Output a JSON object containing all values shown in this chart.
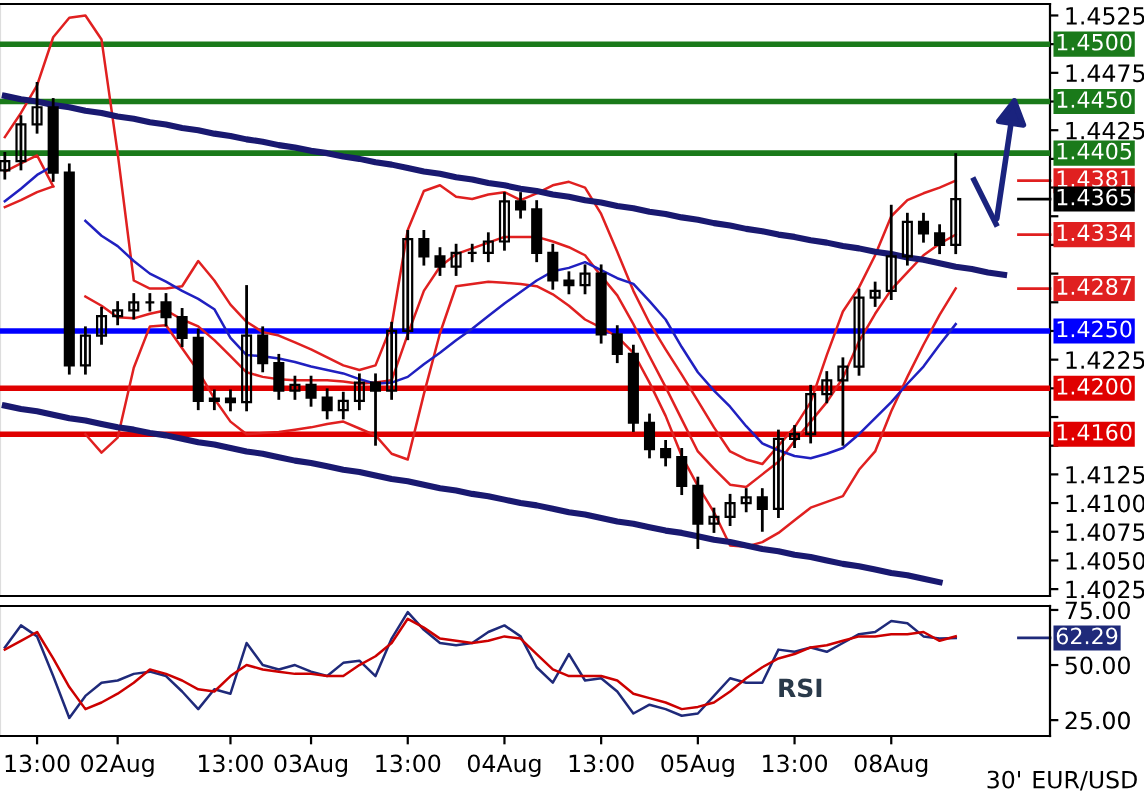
{
  "chart_data": [
    {
      "type": "candlestick",
      "color": "#000000",
      "tick_labels": "y",
      "categories": [
        null,
        null,
        null,
        null,
        null,
        null,
        null,
        null,
        null,
        null,
        null,
        null,
        null,
        null,
        null,
        null,
        null,
        null,
        null,
        null,
        null,
        null,
        null,
        null,
        null,
        null,
        null,
        null,
        null,
        null,
        null,
        null,
        null,
        null,
        null,
        null,
        null,
        null,
        null,
        null,
        null,
        null,
        null,
        null,
        null,
        null,
        null,
        null,
        null,
        null,
        null,
        null,
        null,
        null,
        null,
        null,
        null,
        null,
        null,
        null,
        null,
        null,
        null,
        null
      ],
      "ohlc": [
        [
          1.439,
          1.4406,
          1.4382,
          1.4398
        ],
        [
          1.4398,
          1.4438,
          1.439,
          1.443
        ],
        [
          1.443,
          1.4467,
          1.4422,
          1.4445
        ],
        [
          1.4445,
          1.4453,
          1.438,
          1.4388
        ],
        [
          1.4388,
          1.4396,
          1.4212,
          1.422
        ],
        [
          1.422,
          1.4254,
          1.4212,
          1.4246
        ],
        [
          1.4246,
          1.4271,
          1.4238,
          1.4263
        ],
        [
          1.4263,
          1.4276,
          1.4255,
          1.4268
        ],
        [
          1.4268,
          1.4283,
          1.426,
          1.4275
        ],
        [
          1.4275,
          1.4283,
          1.4267,
          1.4275
        ],
        [
          1.4275,
          1.4283,
          1.4254,
          1.4262
        ],
        [
          1.4262,
          1.427,
          1.4236,
          1.4244
        ],
        [
          1.4244,
          1.4252,
          1.4181,
          1.4189
        ],
        [
          1.4189,
          1.4199,
          1.4181,
          1.4191
        ],
        [
          1.4191,
          1.4199,
          1.418,
          1.4188
        ],
        [
          1.4188,
          1.429,
          1.418,
          1.4246
        ],
        [
          1.4246,
          1.4254,
          1.4214,
          1.4222
        ],
        [
          1.4222,
          1.423,
          1.419,
          1.4198
        ],
        [
          1.4198,
          1.4211,
          1.419,
          1.4203
        ],
        [
          1.4203,
          1.4211,
          1.4184,
          1.4192
        ],
        [
          1.4192,
          1.42,
          1.4173,
          1.4181
        ],
        [
          1.4181,
          1.4197,
          1.4173,
          1.4189
        ],
        [
          1.4189,
          1.4213,
          1.4181,
          1.4205
        ],
        [
          1.4205,
          1.4213,
          1.415,
          1.4198
        ],
        [
          1.4198,
          1.4258,
          1.419,
          1.425
        ],
        [
          1.425,
          1.4338,
          1.4242,
          1.433
        ],
        [
          1.433,
          1.4338,
          1.4307,
          1.4315
        ],
        [
          1.4315,
          1.4323,
          1.4298,
          1.4306
        ],
        [
          1.4306,
          1.4326,
          1.4298,
          1.4318
        ],
        [
          1.4318,
          1.4326,
          1.431,
          1.4318
        ],
        [
          1.4318,
          1.4336,
          1.431,
          1.4328
        ],
        [
          1.4328,
          1.4371,
          1.432,
          1.4363
        ],
        [
          1.4363,
          1.4371,
          1.4348,
          1.4356
        ],
        [
          1.4356,
          1.4364,
          1.431,
          1.4318
        ],
        [
          1.4318,
          1.4326,
          1.4286,
          1.4294
        ],
        [
          1.4294,
          1.4302,
          1.4282,
          1.429
        ],
        [
          1.429,
          1.4308,
          1.4282,
          1.43
        ],
        [
          1.43,
          1.4308,
          1.4239,
          1.4247
        ],
        [
          1.4247,
          1.4255,
          1.4222,
          1.423
        ],
        [
          1.423,
          1.4238,
          1.4162,
          1.417
        ],
        [
          1.417,
          1.4178,
          1.4139,
          1.4147
        ],
        [
          1.4147,
          1.4155,
          1.4132,
          1.414
        ],
        [
          1.414,
          1.4148,
          1.4107,
          1.4115
        ],
        [
          1.4115,
          1.4123,
          1.406,
          1.4082
        ],
        [
          1.4082,
          1.4096,
          1.4074,
          1.4088
        ],
        [
          1.4088,
          1.4108,
          1.408,
          1.41
        ],
        [
          1.41,
          1.4113,
          1.4092,
          1.4105
        ],
        [
          1.4105,
          1.4113,
          1.4075,
          1.4095
        ],
        [
          1.4095,
          1.4164,
          1.4087,
          1.4156
        ],
        [
          1.4156,
          1.4168,
          1.4148,
          1.416
        ],
        [
          1.416,
          1.4203,
          1.4152,
          1.4195
        ],
        [
          1.4195,
          1.4215,
          1.4187,
          1.4207
        ],
        [
          1.4207,
          1.4227,
          1.415,
          1.4219
        ],
        [
          1.4219,
          1.4287,
          1.4211,
          1.4279
        ],
        [
          1.4279,
          1.4293,
          1.4271,
          1.4285
        ],
        [
          1.4285,
          1.436,
          1.4277,
          1.4315
        ],
        [
          1.4315,
          1.4353,
          1.4307,
          1.4345
        ],
        [
          1.4345,
          1.4353,
          1.4327,
          1.4335
        ],
        [
          1.4335,
          1.4343,
          1.4317,
          1.4325
        ],
        [
          1.4325,
          1.4405,
          1.4317,
          1.4365
        ],
        null,
        null,
        null,
        null
      ],
      "series": [
        {
          "type": "line",
          "color": "#e02020",
          "values": [
            1.4419,
            1.444,
            1.4464,
            1.4506,
            1.4523,
            1.4525,
            1.4504,
            1.4405,
            1.4294,
            1.4287,
            1.4287,
            1.4289,
            1.4311,
            1.4294,
            1.4273,
            1.4258,
            1.4249,
            1.4246,
            1.424,
            1.4234,
            1.4227,
            1.422,
            1.4216,
            1.422,
            1.4255,
            1.4338,
            1.4372,
            1.4377,
            1.4367,
            1.4365,
            1.4369,
            1.4371,
            1.4364,
            1.437,
            1.4377,
            1.438,
            1.4375,
            1.4352,
            1.4319,
            1.4285,
            1.4257,
            1.4234,
            1.4212,
            1.4189,
            1.4166,
            1.4145,
            1.4138,
            1.4134,
            1.415,
            1.4166,
            1.4188,
            1.4229,
            1.4267,
            1.4288,
            1.4316,
            1.435,
            1.4364,
            1.437,
            1.4375,
            1.4381,
            null,
            null,
            null,
            null
          ]
        },
        {
          "type": "line",
          "color": "#e02020",
          "values": [
            1.4389,
            1.4396,
            1.4403,
            1.4376,
            null,
            1.428,
            1.4272,
            1.4262,
            1.4261,
            1.4265,
            1.4268,
            1.426,
            1.4254,
            1.4242,
            1.4228,
            1.4214,
            1.421,
            1.4208,
            1.4207,
            1.4207,
            1.4207,
            1.4206,
            1.4204,
            1.4205,
            1.4207,
            1.4247,
            1.4285,
            1.4306,
            1.4317,
            1.4322,
            1.4327,
            1.4332,
            1.4332,
            1.4332,
            1.4328,
            1.4323,
            1.4316,
            1.4298,
            1.4281,
            1.4256,
            1.4228,
            1.4201,
            1.4173,
            1.4145,
            1.413,
            1.4116,
            1.4114,
            1.4125,
            1.4136,
            1.4154,
            1.4171,
            1.4188,
            1.4209,
            1.4241,
            1.4265,
            1.4286,
            1.4301,
            1.4316,
            1.4326,
            1.4334,
            null,
            null,
            null,
            null
          ]
        },
        {
          "type": "line",
          "color": "#e02020",
          "values": [
            1.4358,
            1.4364,
            1.4371,
            1.4376,
            null,
            1.416,
            1.4144,
            1.4157,
            1.4218,
            1.4254,
            1.4255,
            1.4235,
            1.4215,
            1.4191,
            1.4171,
            1.416,
            1.4161,
            1.4162,
            1.4164,
            1.4166,
            1.4169,
            1.4171,
            1.4165,
            1.4159,
            1.4143,
            1.4138,
            1.4195,
            1.4248,
            1.4289,
            1.4291,
            1.4293,
            1.4292,
            1.4291,
            1.4289,
            1.4282,
            1.4272,
            1.426,
            1.4253,
            1.4245,
            1.4231,
            1.4205,
            1.4176,
            1.4141,
            1.4115,
            1.4092,
            1.4063,
            1.4062,
            1.4066,
            1.4074,
            1.4085,
            1.4096,
            1.4101,
            1.4106,
            1.4129,
            1.4145,
            1.418,
            1.421,
            1.4238,
            1.4264,
            1.4287,
            null,
            null,
            null,
            null
          ]
        },
        {
          "type": "line",
          "color": "#2020c0",
          "values": [
            1.4363,
            1.4374,
            1.4386,
            1.4394,
            null,
            1.4346,
            1.4333,
            1.4324,
            1.4311,
            1.43,
            1.4293,
            1.4285,
            1.4278,
            1.4269,
            1.4244,
            1.4229,
            1.4228,
            1.4226,
            1.4223,
            1.4219,
            1.4216,
            1.4213,
            1.4208,
            1.4204,
            1.4205,
            1.421,
            1.4221,
            1.4231,
            1.4242,
            1.4252,
            1.4263,
            1.4274,
            1.4284,
            1.4294,
            1.4302,
            1.4305,
            1.431,
            1.4303,
            1.4296,
            1.4291,
            1.4276,
            1.426,
            1.4236,
            1.4214,
            1.4198,
            1.4184,
            1.4167,
            1.4152,
            1.4146,
            1.4141,
            1.4139,
            1.4143,
            1.4148,
            1.416,
            1.4174,
            1.4188,
            1.4204,
            1.4219,
            1.4238,
            1.4256,
            null,
            null,
            null,
            null
          ]
        },
        {
          "type": "line",
          "color": "#191970",
          "values": [
            1.4455,
            1.4452,
            1.445,
            1.4447,
            1.4445,
            1.4442,
            1.444,
            1.4437,
            1.4435,
            1.4432,
            1.443,
            1.4427,
            1.4425,
            1.4422,
            1.442,
            1.4417,
            1.4415,
            1.4412,
            1.441,
            1.4407,
            1.4405,
            1.4402,
            1.44,
            1.4397,
            1.4395,
            1.4392,
            1.4389,
            1.4387,
            1.4384,
            1.4382,
            1.4379,
            1.4377,
            1.4374,
            1.4372,
            1.4369,
            1.4367,
            1.4364,
            1.4362,
            1.4359,
            1.4357,
            1.4354,
            1.4352,
            1.4349,
            1.4347,
            1.4344,
            1.4342,
            1.4339,
            1.4337,
            1.4334,
            1.4332,
            1.4329,
            1.4327,
            1.4324,
            1.4322,
            1.4319,
            1.4317,
            1.4314,
            1.4312,
            1.4309,
            1.4306,
            1.4304,
            1.4301,
            1.4299,
            null
          ]
        },
        {
          "type": "line",
          "color": "#191970",
          "values": [
            1.4185,
            1.4182,
            1.418,
            1.4177,
            1.4174,
            1.4172,
            1.4169,
            1.4166,
            1.4164,
            1.4161,
            1.4159,
            1.4156,
            1.4153,
            1.4151,
            1.4148,
            1.4145,
            1.4143,
            1.414,
            1.4137,
            1.4135,
            1.4132,
            1.4129,
            1.4127,
            1.4124,
            1.4121,
            1.4119,
            1.4116,
            1.4113,
            1.4111,
            1.4108,
            1.4106,
            1.4103,
            1.41,
            1.4098,
            1.4095,
            1.4092,
            1.409,
            1.4087,
            1.4084,
            1.4082,
            1.4079,
            1.4076,
            1.4074,
            1.4071,
            1.4068,
            1.4066,
            1.4063,
            1.406,
            1.4058,
            1.4055,
            1.4053,
            1.405,
            1.4047,
            1.4045,
            1.4042,
            1.4039,
            1.4037,
            1.4034,
            1.4031,
            null,
            null,
            null,
            null,
            null
          ]
        }
      ],
      "ylim": [
        1.4019,
        1.4535
      ],
      "yticks": [
        1.4025,
        {
          "value": 1.405,
          "label": "1.4050"
        },
        1.4075,
        {
          "value": 1.41,
          "label": "1.4100"
        },
        1.4125,
        {
          "value": 1.415,
          "label": null
        },
        {
          "value": 1.4175,
          "label": null
        },
        {
          "value": 1.42,
          "label": null
        },
        1.4225,
        {
          "value": 1.425,
          "label": null
        },
        {
          "value": 1.4275,
          "label": null
        },
        {
          "value": 1.43,
          "label": null
        },
        {
          "value": 1.4325,
          "label": null
        },
        {
          "value": 1.435,
          "label": null
        },
        {
          "value": 1.4375,
          "label": null
        },
        {
          "value": 1.44,
          "label": null
        },
        1.4425,
        {
          "value": 1.445,
          "label": null
        },
        1.4475,
        {
          "value": 1.45,
          "label": null
        },
        1.4525
      ],
      "ref_lines": [
        {
          "axis": "y",
          "value": 1.45,
          "label": "1.4500",
          "color": "#1a7a1a"
        },
        {
          "axis": "y",
          "value": 1.445,
          "label": "1.4450",
          "color": "#1a7a1a"
        },
        {
          "axis": "y",
          "value": 1.4405,
          "label": "1.4405",
          "color": "#1a7a1a"
        },
        {
          "axis": "y",
          "value": 1.425,
          "label": "1.4250",
          "color": "#0000ff"
        },
        {
          "axis": "y",
          "value": 1.42,
          "label": "1.4200",
          "color": "#e00000"
        },
        {
          "axis": "y",
          "value": 1.416,
          "label": "1.4160",
          "color": "#e00000"
        }
      ],
      "annotations": [
        "1.4381",
        "1.4365",
        "1.4334",
        "1.4287"
      ]
    },
    {
      "type": "line",
      "categories": [
        null,
        null,
        "13:00",
        null,
        null,
        null,
        null,
        "02Aug",
        null,
        null,
        null,
        null,
        null,
        null,
        "13:00",
        null,
        null,
        null,
        null,
        "03Aug",
        null,
        null,
        null,
        null,
        null,
        "13:00",
        null,
        null,
        null,
        null,
        null,
        "04Aug",
        null,
        null,
        null,
        null,
        null,
        "13:00",
        null,
        null,
        null,
        null,
        null,
        "05Aug",
        null,
        null,
        null,
        null,
        null,
        "13:00",
        null,
        null,
        null,
        null,
        null,
        "08Aug",
        null,
        null,
        null,
        null,
        null,
        null,
        null,
        null
      ],
      "series": [
        {
          "name": "RSI",
          "color": "#1f2a7a",
          "values": [
            58,
            68,
            63,
            45,
            26,
            36,
            42,
            43,
            46,
            47,
            45,
            38,
            30,
            39,
            37,
            60,
            50,
            48,
            50,
            47,
            45,
            51,
            52,
            45,
            62,
            74,
            66,
            60,
            59,
            60,
            65,
            68,
            63,
            49,
            42,
            55,
            43,
            44,
            38,
            28,
            32,
            30,
            27,
            28,
            36,
            44,
            42,
            42,
            57,
            56,
            58,
            56,
            60,
            64,
            65,
            70,
            69,
            63,
            62,
            62.29,
            null,
            null,
            null,
            null
          ]
        },
        {
          "color": "#cc0000",
          "values": [
            57,
            61,
            65,
            53,
            40,
            30,
            33,
            37,
            42,
            48,
            46,
            43,
            39,
            38,
            45,
            50,
            48,
            47,
            46,
            46,
            45,
            45,
            50,
            54,
            60,
            71,
            67,
            62,
            61,
            60,
            61,
            63,
            62,
            55,
            48,
            45,
            45,
            45,
            43,
            37,
            35,
            33,
            30,
            31,
            33,
            38,
            44,
            49,
            53,
            55,
            58,
            59,
            61,
            63,
            63,
            64,
            64,
            65,
            61,
            63,
            null,
            null,
            null,
            null
          ]
        }
      ],
      "ylim": [
        17.8,
        76.8
      ],
      "yticks": [
        {
          "value": 25,
          "label": "25.00"
        },
        {
          "value": 50,
          "label": "50.00"
        },
        {
          "value": 75,
          "label": "75.00"
        }
      ],
      "annotations": [
        {
          "text": "62.29",
          "y": 62.29
        },
        "30'",
        "EUR/USD"
      ]
    }
  ]
}
